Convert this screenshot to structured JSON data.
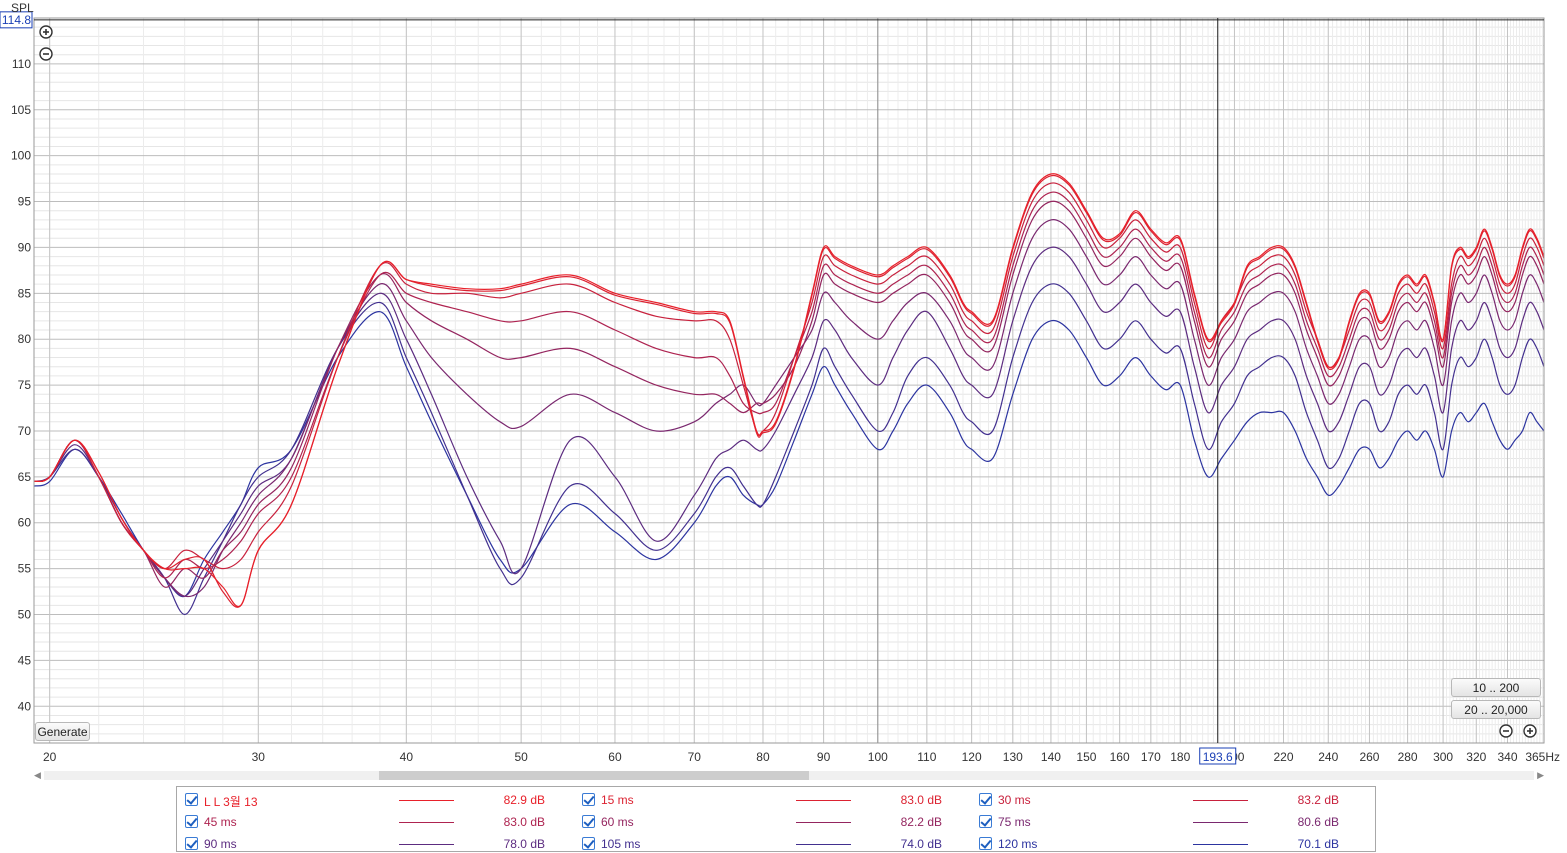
{
  "chart_data": {
    "type": "line",
    "ylabel": "SPL",
    "xunit": "Hz",
    "ylim": [
      36,
      115
    ],
    "xlim": [
      19.4,
      365
    ],
    "xscale": "log",
    "cursor": {
      "spl": "114.8",
      "freq": "193.6",
      "freq_value": 193.6
    },
    "y_ticks": [
      40,
      45,
      50,
      55,
      60,
      65,
      70,
      75,
      80,
      85,
      90,
      95,
      100,
      105,
      110
    ],
    "x_ticks": [
      {
        "v": 20,
        "label": "20"
      },
      {
        "v": 30,
        "label": "30"
      },
      {
        "v": 40,
        "label": "40"
      },
      {
        "v": 50,
        "label": "50"
      },
      {
        "v": 60,
        "label": "60"
      },
      {
        "v": 70,
        "label": "70"
      },
      {
        "v": 80,
        "label": "80"
      },
      {
        "v": 90,
        "label": "90"
      },
      {
        "v": 100,
        "label": "100"
      },
      {
        "v": 110,
        "label": "110"
      },
      {
        "v": 120,
        "label": "120"
      },
      {
        "v": 130,
        "label": "130"
      },
      {
        "v": 140,
        "label": "140"
      },
      {
        "v": 150,
        "label": "150"
      },
      {
        "v": 160,
        "label": "160"
      },
      {
        "v": 170,
        "label": "170"
      },
      {
        "v": 180,
        "label": "180"
      },
      {
        "v": 200,
        "label": "200"
      },
      {
        "v": 220,
        "label": "220"
      },
      {
        "v": 240,
        "label": "240"
      },
      {
        "v": 260,
        "label": "260"
      },
      {
        "v": 280,
        "label": "280"
      },
      {
        "v": 300,
        "label": "300"
      },
      {
        "v": 320,
        "label": "320"
      },
      {
        "v": 340,
        "label": "340"
      },
      {
        "v": 365,
        "label": "365Hz"
      }
    ],
    "x": [
      19.4,
      20,
      21,
      22,
      23,
      24,
      25,
      26,
      27,
      28,
      29,
      30,
      32,
      35,
      38,
      40,
      42,
      45,
      48,
      50,
      55,
      60,
      65,
      70,
      73,
      75,
      77,
      79,
      80,
      82,
      85,
      88,
      90,
      92,
      95,
      100,
      103,
      106,
      110,
      115,
      118,
      120,
      125,
      130,
      135,
      140,
      145,
      150,
      155,
      160,
      165,
      170,
      175,
      180,
      185,
      190,
      195,
      200,
      205,
      210,
      215,
      220,
      225,
      230,
      235,
      240,
      245,
      250,
      255,
      260,
      265,
      270,
      275,
      280,
      285,
      290,
      295,
      300,
      305,
      310,
      315,
      320,
      325,
      330,
      335,
      340,
      345,
      350,
      355,
      360,
      365
    ],
    "series": [
      {
        "name": "L L 3월 13",
        "legend_value": "82.9 dB",
        "color": "#e8202a",
        "values": [
          64.5,
          65,
          69,
          65.5,
          60.5,
          57,
          55,
          55,
          55,
          53,
          51,
          57,
          62,
          77,
          88,
          86.5,
          86,
          85.5,
          85.5,
          86,
          87,
          85,
          84,
          83,
          83,
          82,
          76,
          70,
          70,
          71,
          77,
          85,
          90,
          89,
          88,
          87,
          88,
          89,
          90,
          87,
          84,
          83,
          82,
          90,
          96,
          98,
          97,
          94,
          91,
          91.5,
          94,
          92,
          90.5,
          91,
          85,
          80,
          82,
          84,
          88,
          89,
          90,
          90,
          88,
          84,
          80,
          77,
          78,
          82,
          85,
          85,
          82,
          83,
          86,
          87,
          86,
          87,
          84,
          80,
          88,
          90,
          89,
          90,
          92,
          90,
          87,
          86,
          87,
          90,
          92,
          91,
          89
        ]
      },
      {
        "name": "15 ms",
        "legend_value": "83.0 dB",
        "color": "#dc2231",
        "values": [
          64.5,
          65,
          69,
          65.5,
          60.5,
          57,
          55,
          56,
          56,
          52.5,
          51,
          57,
          62,
          77,
          88,
          86.5,
          85.8,
          85.3,
          85.3,
          85.8,
          86.8,
          84.8,
          83.8,
          82.8,
          82.8,
          81.8,
          75.8,
          69.8,
          69.8,
          70.8,
          76.8,
          84.8,
          89.8,
          88.8,
          87.8,
          86.8,
          87.8,
          88.8,
          89.8,
          86.8,
          83.8,
          82.8,
          81.8,
          89.8,
          95.8,
          97.8,
          96.8,
          93.8,
          90.8,
          91.3,
          93.8,
          91.8,
          90.3,
          90.8,
          84.8,
          79.8,
          81.8,
          83.8,
          87.8,
          88.8,
          89.8,
          89.8,
          87.8,
          83.8,
          79.8,
          76.8,
          77.8,
          81.8,
          84.8,
          84.8,
          81.8,
          82.8,
          85.8,
          86.8,
          85.8,
          86.8,
          83.8,
          79.8,
          87.8,
          89.8,
          88.8,
          89.8,
          91.8,
          89.8,
          86.8,
          85.8,
          86.8,
          89.8,
          91.8,
          90.8,
          88.8
        ]
      },
      {
        "name": "30 ms",
        "legend_value": "83.2 dB",
        "color": "#c8213d",
        "values": [
          64.5,
          65,
          69,
          65,
          60,
          57,
          55,
          57,
          56,
          55,
          56,
          59,
          64,
          78,
          88,
          86,
          85,
          85,
          84.5,
          85,
          86,
          84,
          82.5,
          82,
          82,
          80,
          75,
          70,
          70,
          72,
          78,
          84,
          89,
          88,
          87,
          86,
          87,
          88,
          89,
          86,
          83,
          82,
          81,
          89,
          95,
          97,
          96,
          93,
          90,
          91,
          93,
          91,
          89.5,
          90,
          84,
          79,
          82,
          84,
          87,
          88,
          89,
          89,
          87,
          83,
          80,
          77,
          78,
          81,
          84,
          84,
          81,
          82,
          85,
          86,
          85,
          86,
          83,
          79,
          86,
          89,
          88,
          89,
          91,
          89,
          86,
          85,
          86,
          89,
          91,
          90,
          88
        ]
      },
      {
        "name": "45 ms",
        "legend_value": "83.0 dB",
        "color": "#ae2350",
        "values": [
          64.5,
          65,
          69,
          65,
          60,
          57,
          54,
          56,
          55,
          56,
          58,
          61,
          65,
          78,
          87,
          85,
          84,
          83,
          82,
          82,
          83,
          81,
          79,
          78,
          78,
          76,
          73,
          72,
          72,
          73,
          78,
          83,
          88,
          87,
          86,
          85,
          86,
          87,
          88,
          85,
          82,
          81,
          80,
          88,
          94,
          96,
          95,
          92,
          89,
          90,
          92,
          90,
          88.5,
          89,
          83,
          78,
          81,
          83,
          86,
          87,
          88,
          88,
          86,
          82,
          79,
          76,
          77,
          80,
          83,
          83,
          80,
          81,
          84,
          85,
          84,
          85,
          82,
          78,
          85,
          88,
          87,
          88,
          90,
          88,
          85,
          84,
          85,
          88,
          90,
          89,
          87
        ]
      },
      {
        "name": "60 ms",
        "legend_value": "82.2 dB",
        "color": "#94255f",
        "values": [
          64.5,
          65,
          69,
          65,
          60,
          57,
          53,
          55,
          54,
          57,
          59,
          62,
          66,
          79,
          87,
          84,
          82,
          80,
          78,
          78,
          79,
          77,
          75,
          74,
          74,
          73,
          72,
          73,
          73,
          74,
          77,
          82,
          87,
          86,
          85,
          84,
          85,
          86,
          87,
          84,
          81,
          80,
          79,
          87,
          93,
          95,
          94,
          91,
          88,
          89,
          91,
          89,
          87.5,
          88,
          82,
          77,
          80,
          82,
          85,
          86,
          87,
          87,
          85,
          81,
          78,
          75,
          76,
          79,
          82,
          82,
          79,
          80,
          83,
          84,
          83,
          84,
          81,
          77,
          84,
          87,
          86,
          87,
          89,
          87,
          84,
          83,
          84,
          87,
          89,
          88,
          86
        ]
      },
      {
        "name": "75 ms",
        "legend_value": "80.6 dB",
        "color": "#7a286f",
        "values": [
          64.5,
          65,
          69,
          65,
          60,
          57,
          54,
          52,
          53,
          57,
          60,
          63,
          67,
          79,
          86,
          82,
          78,
          74,
          71,
          70.5,
          74,
          72,
          70,
          71,
          73,
          74,
          75,
          73,
          73,
          75,
          78,
          81,
          85,
          84,
          82,
          80,
          82,
          84,
          85,
          82,
          79,
          78,
          77,
          85,
          91,
          93,
          92,
          89,
          86,
          87,
          89,
          87,
          85.5,
          86,
          80,
          75,
          78,
          80,
          83,
          84,
          85,
          85,
          83,
          79,
          76,
          73,
          74,
          77,
          80,
          80,
          77,
          78,
          81,
          82,
          81,
          82,
          79,
          75,
          82,
          85,
          84,
          85,
          87,
          85,
          82,
          81,
          82,
          85,
          87,
          86,
          84
        ]
      },
      {
        "name": "90 ms",
        "legend_value": "78.0 dB",
        "color": "#5c2c80",
        "values": [
          64.5,
          65,
          68.5,
          65,
          60,
          57,
          54,
          52,
          55,
          58,
          61,
          64,
          67,
          79,
          85,
          80,
          74,
          65,
          58,
          55,
          69,
          65,
          58,
          63,
          67,
          68,
          69,
          68,
          68,
          70,
          74,
          78,
          82,
          81,
          78,
          75,
          78,
          81,
          83,
          79,
          76,
          75,
          74,
          82,
          88,
          90,
          89,
          86,
          83,
          84,
          86,
          84,
          82.5,
          83,
          77,
          72,
          75,
          77,
          80,
          81,
          82,
          82,
          80,
          76,
          73,
          70,
          71,
          74,
          77,
          77,
          74,
          75,
          78,
          79,
          78,
          79,
          76,
          72,
          79,
          82,
          81,
          82,
          84,
          82,
          79,
          78,
          79,
          82,
          84,
          83,
          81
        ]
      },
      {
        "name": "105 ms",
        "legend_value": "74.0 dB",
        "color": "#42308f",
        "values": [
          64.5,
          65,
          68,
          65,
          60.5,
          57,
          54,
          50,
          54,
          58,
          62,
          65,
          68,
          79,
          84,
          78,
          72,
          63,
          55,
          54,
          64,
          61,
          57,
          61,
          65,
          66,
          64,
          62,
          62,
          65,
          70,
          75,
          79,
          77,
          74,
          70,
          72,
          76,
          78,
          75,
          72,
          71,
          70,
          78,
          84,
          86,
          85,
          82,
          79,
          80,
          82,
          80,
          78.5,
          79,
          73,
          68,
          71,
          73,
          76,
          77,
          78,
          78,
          76,
          72,
          69,
          66,
          67,
          70,
          73,
          73,
          70,
          71,
          74,
          75,
          74,
          75,
          72,
          68,
          75,
          78,
          77,
          78,
          80,
          78,
          75,
          74,
          75,
          78,
          80,
          79,
          77
        ]
      },
      {
        "name": "120 ms",
        "legend_value": "70.1 dB",
        "color": "#2c34a0",
        "values": [
          64,
          64.5,
          68,
          65,
          61,
          57,
          54,
          52,
          56,
          59,
          62,
          66,
          68,
          78,
          83,
          77,
          71,
          63,
          56,
          55,
          62,
          59,
          56,
          60,
          64,
          65,
          63,
          62,
          62,
          64,
          69,
          74,
          77,
          75,
          72,
          68,
          70,
          73,
          75,
          72,
          69,
          68,
          67,
          74,
          80,
          82,
          81,
          78,
          75,
          76,
          78,
          76,
          74.5,
          75,
          69,
          65,
          67,
          69,
          71,
          72,
          72,
          72,
          70,
          67,
          65,
          63,
          64,
          66,
          68,
          68,
          66,
          67,
          69,
          70,
          69,
          70,
          68,
          65,
          70,
          72,
          71,
          72,
          73,
          71,
          69,
          68,
          69,
          70,
          72,
          71,
          70
        ]
      }
    ]
  },
  "buttons": {
    "generate": "Generate",
    "range1": "10 .. 200",
    "range2": "20 .. 20,000"
  }
}
